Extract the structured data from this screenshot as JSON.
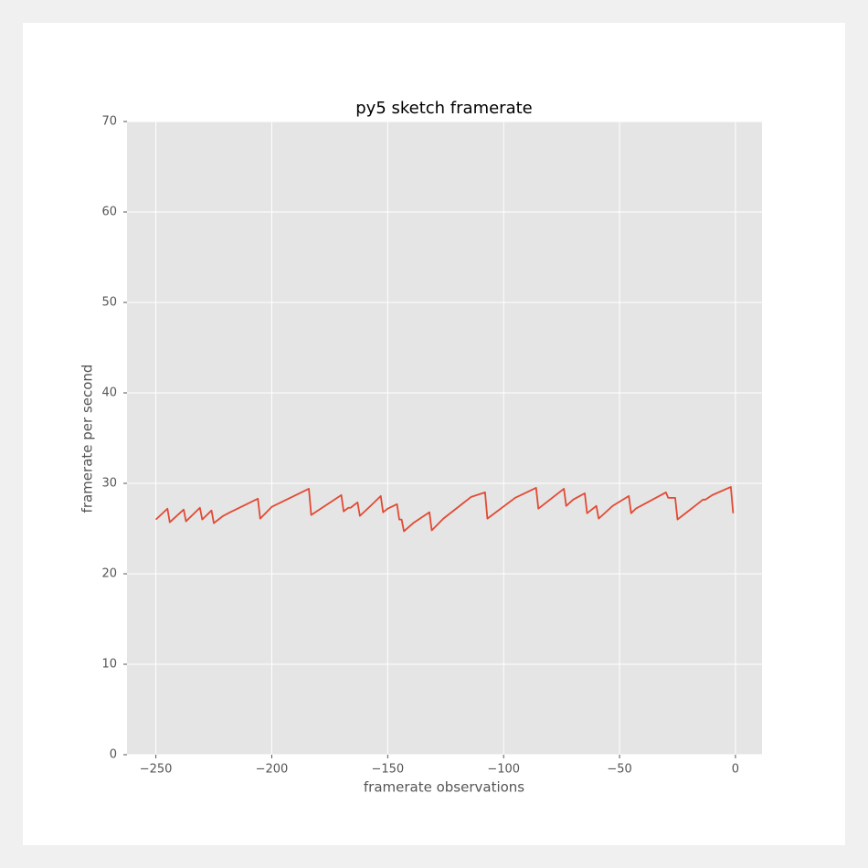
{
  "chart_data": {
    "type": "line",
    "title": "py5 sketch framerate",
    "x_label": "framerate observations",
    "y_label": "framerate per second",
    "x": [
      -250,
      -245,
      -244,
      -238,
      -237,
      -231,
      -230,
      -226,
      -225,
      -221,
      -218,
      -206,
      -205,
      -200,
      -184,
      -183,
      -170,
      -169,
      -167,
      -166,
      -163,
      -162,
      -157,
      -153,
      -152,
      -150,
      -146,
      -145,
      -144,
      -143,
      -139,
      -132,
      -131,
      -126,
      -114,
      -108,
      -107,
      -95,
      -86,
      -85,
      -79,
      -74,
      -73,
      -70,
      -65,
      -64,
      -60,
      -59,
      -53,
      -46,
      -45,
      -43,
      -30,
      -29,
      -26,
      -25,
      -23,
      -14,
      -13,
      -10,
      -2,
      -1
    ],
    "series": [
      {
        "name": "framerate",
        "color": "#E24A33",
        "values": [
          26.0,
          27.2,
          25.7,
          27.1,
          25.8,
          27.3,
          26.0,
          27.0,
          25.6,
          26.4,
          26.8,
          28.3,
          26.1,
          27.4,
          29.4,
          26.5,
          28.7,
          26.9,
          27.3,
          27.3,
          27.9,
          26.4,
          27.6,
          28.6,
          26.8,
          27.2,
          27.7,
          26.0,
          26.0,
          24.7,
          25.6,
          26.8,
          24.8,
          26.1,
          28.5,
          29.0,
          26.1,
          28.4,
          29.5,
          27.2,
          28.4,
          29.4,
          27.5,
          28.2,
          28.9,
          26.7,
          27.5,
          26.1,
          27.5,
          28.6,
          26.7,
          27.2,
          29.0,
          28.4,
          28.4,
          26.0,
          26.4,
          28.2,
          28.2,
          28.7,
          29.6,
          26.7
        ]
      }
    ],
    "xlim": [
      -262.45,
      11.45
    ],
    "ylim": [
      0,
      70
    ],
    "xticks": [
      {
        "value": -250,
        "label": "−250"
      },
      {
        "value": -200,
        "label": "−200"
      },
      {
        "value": -150,
        "label": "−150"
      },
      {
        "value": -100,
        "label": "−100"
      },
      {
        "value": -50,
        "label": "−50"
      },
      0
    ],
    "yticks": [
      0,
      10,
      20,
      30,
      40,
      50,
      60,
      70
    ],
    "grid": true
  }
}
